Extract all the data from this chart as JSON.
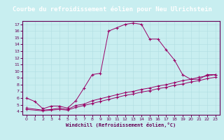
{
  "title": "Courbe du refroidissement éolien pour Neu Ulrichstein",
  "xlabel": "Windchill (Refroidissement éolien,°C)",
  "xlim": [
    -0.5,
    23.5
  ],
  "ylim": [
    3.5,
    17.5
  ],
  "xticks": [
    0,
    1,
    2,
    3,
    4,
    5,
    6,
    7,
    8,
    9,
    10,
    11,
    12,
    13,
    14,
    15,
    16,
    17,
    18,
    19,
    20,
    21,
    22,
    23
  ],
  "yticks": [
    4,
    5,
    6,
    7,
    8,
    9,
    10,
    11,
    12,
    13,
    14,
    15,
    16,
    17
  ],
  "background_color": "#c8eef0",
  "line_color": "#990066",
  "grid_color": "#b0dde0",
  "line1_x": [
    0,
    1,
    2,
    3,
    4,
    5,
    6,
    7,
    8,
    9,
    10,
    11,
    12,
    13,
    14,
    15,
    16,
    17,
    18,
    19,
    20,
    21,
    22,
    23
  ],
  "line1_y": [
    6.0,
    5.5,
    4.4,
    4.8,
    4.8,
    4.5,
    5.6,
    7.5,
    9.5,
    9.7,
    16.0,
    16.5,
    17.0,
    17.2,
    17.0,
    14.8,
    14.8,
    13.2,
    11.7,
    9.5,
    8.8,
    8.8,
    9.5,
    9.5
  ],
  "line2_x": [
    0,
    2,
    3,
    4,
    5,
    6,
    7,
    8,
    9,
    10,
    11,
    12,
    13,
    14,
    15,
    16,
    17,
    18,
    19,
    20,
    21,
    22,
    23
  ],
  "line2_y": [
    4.5,
    4.2,
    4.3,
    4.5,
    4.3,
    4.9,
    5.1,
    5.6,
    5.9,
    6.2,
    6.5,
    6.8,
    7.0,
    7.3,
    7.5,
    7.8,
    8.0,
    8.3,
    8.6,
    8.8,
    9.1,
    9.3,
    9.5
  ],
  "line3_x": [
    0,
    2,
    3,
    4,
    5,
    6,
    7,
    8,
    9,
    10,
    11,
    12,
    13,
    14,
    15,
    16,
    17,
    18,
    19,
    20,
    21,
    22,
    23
  ],
  "line3_y": [
    4.3,
    4.1,
    4.2,
    4.3,
    4.2,
    4.6,
    4.9,
    5.2,
    5.5,
    5.8,
    6.1,
    6.4,
    6.6,
    6.9,
    7.1,
    7.4,
    7.6,
    7.9,
    8.1,
    8.4,
    8.6,
    8.9,
    9.1
  ],
  "title_bg": "#7b5ea7",
  "title_fg": "#ffffff",
  "title_fontsize": 6.5
}
